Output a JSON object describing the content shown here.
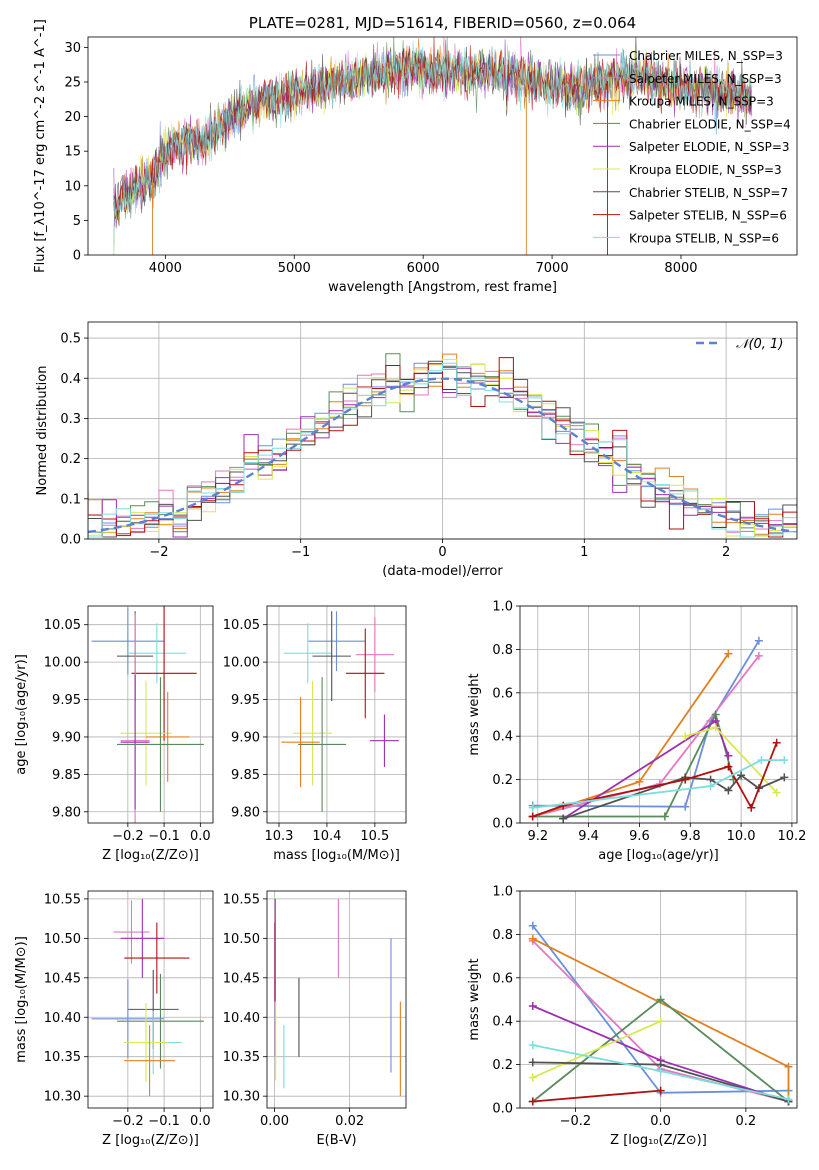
{
  "chart_data": [
    {
      "id": "spectrum",
      "type": "line",
      "title": "PLATE=0281, MJD=51614, FIBERID=0560, z=0.064",
      "xlabel": "wavelength [Angstrom, rest frame]",
      "ylabel": "Flux [f_λ10^-17 erg cm^-2 s^-1 A^-1]",
      "xlim": [
        3400,
        8900
      ],
      "ylim": [
        0,
        31.5
      ],
      "xticks": [
        "4000",
        "5000",
        "6000",
        "7000",
        "8000"
      ],
      "yticks": [
        "0",
        "5",
        "10",
        "15",
        "20",
        "25",
        "30"
      ],
      "grid": false,
      "legend_position": "top-right",
      "continuum": {
        "x": [
          3600,
          3700,
          3800,
          3900,
          4000,
          4100,
          4200,
          4300,
          4500,
          4700,
          4900,
          5100,
          5300,
          5500,
          5700,
          5900,
          6100,
          6300,
          6500,
          6700,
          6900,
          7100,
          7300,
          7500,
          7700,
          7900,
          8100,
          8300,
          8500
        ],
        "y": [
          6,
          9,
          10,
          11,
          15,
          16,
          17,
          16,
          20,
          22,
          23,
          24,
          25,
          25.5,
          26.5,
          27,
          26.5,
          26.5,
          26.5,
          26,
          25,
          24,
          24.5,
          25.5,
          26,
          24.5,
          24,
          23.5,
          23
        ]
      },
      "series": [
        {
          "name": "Chabrier MILES, N_SSP=3",
          "color": "#6b8fdc"
        },
        {
          "name": "Salpeter MILES, N_SSP=3",
          "color": "#e377c2"
        },
        {
          "name": "Kroupa MILES, N_SSP=3",
          "color": "#e08020"
        },
        {
          "name": "Chabrier ELODIE, N_SSP=4",
          "color": "#5a8a5a"
        },
        {
          "name": "Salpeter ELODIE, N_SSP=3",
          "color": "#9c30b0"
        },
        {
          "name": "Kroupa ELODIE, N_SSP=3",
          "color": "#d8e850"
        },
        {
          "name": "Chabrier STELIB, N_SSP=7",
          "color": "#505050"
        },
        {
          "name": "Salpeter STELIB, N_SSP=6",
          "color": "#b01010"
        },
        {
          "name": "Kroupa STELIB, N_SSP=6",
          "color": "#7fdcdc"
        }
      ]
    },
    {
      "id": "residuals",
      "type": "line",
      "xlabel": "(data-model)/error",
      "ylabel": "Normed distribution",
      "xlim": [
        -2.5,
        2.5
      ],
      "ylim": [
        0,
        0.54
      ],
      "xticks": [
        "−2",
        "−1",
        "0",
        "1",
        "2"
      ],
      "yticks": [
        "0.0",
        "0.1",
        "0.2",
        "0.3",
        "0.4",
        "0.5"
      ],
      "grid": true,
      "legend": "𝒩(0, 1)",
      "legend_position": "top-right",
      "bin_width": 0.1,
      "reference_curve": "N(0,1)"
    },
    {
      "id": "age-vs-Z",
      "type": "scatter",
      "xlabel": "Z [log₁₀(Z/Z⊙)]",
      "ylabel": "age  [log₁₀(age/yr)]",
      "xlim": [
        -0.31,
        0.035
      ],
      "ylim": [
        9.785,
        10.075
      ],
      "xticks": [
        "−0.2",
        "−0.1",
        "0.0"
      ],
      "yticks": [
        "9.80",
        "9.85",
        "9.90",
        "9.95",
        "10.00",
        "10.05"
      ],
      "grid": true,
      "points": [
        {
          "x": -0.2,
          "y": 10.028,
          "xerr": 0.1,
          "yerr": 0.045,
          "color": "#6b8fdc"
        },
        {
          "x": -0.12,
          "y": 10.012,
          "xerr": 0.08,
          "yerr": 0.04,
          "color": "#7fdcdc"
        },
        {
          "x": -0.18,
          "y": 10.008,
          "xerr": 0.05,
          "yerr": 0.06,
          "color": "#505050"
        },
        {
          "x": -0.1,
          "y": 9.985,
          "xerr": 0.09,
          "yerr": 0.09,
          "color": "#b01010"
        },
        {
          "x": -0.15,
          "y": 9.905,
          "xerr": 0.07,
          "yerr": 0.07,
          "color": "#d8e850"
        },
        {
          "x": -0.09,
          "y": 9.9,
          "xerr": 0.06,
          "yerr": 0.06,
          "color": "#e08020"
        },
        {
          "x": -0.18,
          "y": 9.895,
          "xerr": 0.04,
          "yerr": 0.17,
          "color": "#e377c2"
        },
        {
          "x": -0.18,
          "y": 9.893,
          "xerr": 0.04,
          "yerr": 0.09,
          "color": "#9c30b0"
        },
        {
          "x": -0.11,
          "y": 9.89,
          "xerr": 0.12,
          "yerr": 0.09,
          "color": "#5a8a5a"
        }
      ]
    },
    {
      "id": "age-vs-mass",
      "type": "scatter",
      "xlabel": "mass [log₁₀(M/M⊙)]",
      "ylabel": "",
      "xlim": [
        10.275,
        10.565
      ],
      "ylim": [
        9.785,
        10.075
      ],
      "xticks": [
        "10.3",
        "10.4",
        "10.5"
      ],
      "yticks": [
        "9.80",
        "9.85",
        "9.90",
        "9.95",
        "10.00",
        "10.05"
      ],
      "grid": true,
      "points": [
        {
          "x": 10.42,
          "y": 10.028,
          "xerr": 0.06,
          "yerr": 0.04,
          "color": "#6b8fdc"
        },
        {
          "x": 10.36,
          "y": 10.012,
          "xerr": 0.05,
          "yerr": 0.04,
          "color": "#7fdcdc"
        },
        {
          "x": 10.41,
          "y": 10.008,
          "xerr": 0.04,
          "yerr": 0.06,
          "color": "#505050"
        },
        {
          "x": 10.5,
          "y": 10.01,
          "xerr": 0.04,
          "yerr": 0.05,
          "color": "#e377c2"
        },
        {
          "x": 10.48,
          "y": 9.985,
          "xerr": 0.04,
          "yerr": 0.06,
          "color": "#b01010"
        },
        {
          "x": 10.37,
          "y": 9.905,
          "xerr": 0.04,
          "yerr": 0.07,
          "color": "#d8e850"
        },
        {
          "x": 10.345,
          "y": 9.893,
          "xerr": 0.04,
          "yerr": 0.06,
          "color": "#e08020"
        },
        {
          "x": 10.39,
          "y": 9.89,
          "xerr": 0.05,
          "yerr": 0.09,
          "color": "#5a8a5a"
        },
        {
          "x": 10.52,
          "y": 9.895,
          "xerr": 0.03,
          "yerr": 0.035,
          "color": "#9c30b0"
        }
      ]
    },
    {
      "id": "weight-vs-age",
      "type": "line",
      "xlabel": "age  [log₁₀(age/yr)]",
      "ylabel": "mass weight",
      "xlim": [
        9.13,
        10.22
      ],
      "ylim": [
        0,
        1.0
      ],
      "xticks": [
        "9.2",
        "9.4",
        "9.6",
        "9.8",
        "10.0",
        "10.2"
      ],
      "yticks": [
        "0.0",
        "0.2",
        "0.4",
        "0.6",
        "0.8",
        "1.0"
      ],
      "grid": true,
      "series": [
        {
          "color": "#6b8fdc",
          "x": [
            9.18,
            9.78,
            9.88,
            10.07
          ],
          "y": [
            0.08,
            0.075,
            0.47,
            0.84
          ]
        },
        {
          "color": "#e377c2",
          "x": [
            9.18,
            9.68,
            10.07
          ],
          "y": [
            0.03,
            0.18,
            0.77
          ]
        },
        {
          "color": "#e08020",
          "x": [
            9.18,
            9.6,
            9.95
          ],
          "y": [
            0.03,
            0.19,
            0.78
          ]
        },
        {
          "color": "#5a8a5a",
          "x": [
            9.18,
            9.7,
            9.9,
            9.97
          ],
          "y": [
            0.03,
            0.03,
            0.5,
            0.2
          ]
        },
        {
          "color": "#9c30b0",
          "x": [
            9.3,
            9.9,
            9.95
          ],
          "y": [
            0.02,
            0.47,
            0.31
          ]
        },
        {
          "color": "#d8e850",
          "x": [
            9.78,
            9.9,
            10.14
          ],
          "y": [
            0.4,
            0.44,
            0.14
          ]
        },
        {
          "color": "#505050",
          "x": [
            9.3,
            9.78,
            9.88,
            9.95,
            10.0,
            10.07,
            10.17
          ],
          "y": [
            0.02,
            0.21,
            0.2,
            0.15,
            0.22,
            0.16,
            0.21
          ]
        },
        {
          "color": "#b01010",
          "x": [
            9.18,
            9.3,
            9.78,
            9.95,
            10.04,
            10.14
          ],
          "y": [
            0.03,
            0.08,
            0.2,
            0.26,
            0.07,
            0.37
          ]
        },
        {
          "color": "#7fdcdc",
          "x": [
            9.18,
            9.88,
            10.08,
            10.17
          ],
          "y": [
            0.07,
            0.17,
            0.29,
            0.29
          ]
        }
      ]
    },
    {
      "id": "mass-vs-Z",
      "type": "scatter",
      "xlabel": "Z [log₁₀(Z/Z⊙)]",
      "ylabel": "mass [log₁₀(M/M⊙)]",
      "xlim": [
        -0.31,
        0.035
      ],
      "ylim": [
        10.285,
        10.56
      ],
      "xticks": [
        "−0.2",
        "−0.1",
        "0.0"
      ],
      "yticks": [
        "10.30",
        "10.35",
        "10.40",
        "10.45",
        "10.50",
        "10.55"
      ],
      "grid": true,
      "points": [
        {
          "x": -0.19,
          "y": 10.508,
          "xerr": 0.05,
          "yerr": 0.04,
          "color": "#e377c2"
        },
        {
          "x": -0.16,
          "y": 10.5,
          "xerr": 0.06,
          "yerr": 0.05,
          "color": "#9c30b0"
        },
        {
          "x": -0.12,
          "y": 10.475,
          "xerr": 0.09,
          "yerr": 0.045,
          "color": "#b01010"
        },
        {
          "x": -0.13,
          "y": 10.41,
          "xerr": 0.07,
          "yerr": 0.05,
          "color": "#505050"
        },
        {
          "x": -0.11,
          "y": 10.395,
          "xerr": 0.12,
          "yerr": 0.06,
          "color": "#5a8a5a"
        },
        {
          "x": -0.2,
          "y": 10.398,
          "xerr": 0.1,
          "yerr": 0.05,
          "color": "#6b8fdc"
        },
        {
          "x": -0.13,
          "y": 10.368,
          "xerr": 0.08,
          "yerr": 0.04,
          "color": "#7fdcdc"
        },
        {
          "x": -0.15,
          "y": 10.368,
          "xerr": 0.06,
          "yerr": 0.05,
          "color": "#d8e850"
        },
        {
          "x": -0.14,
          "y": 10.345,
          "xerr": 0.07,
          "yerr": 0.045,
          "color": "#e08020"
        }
      ]
    },
    {
      "id": "mass-vs-EBV",
      "type": "scatter",
      "xlabel": "E(B-V)",
      "ylabel": "",
      "xlim": [
        -0.002,
        0.035
      ],
      "ylim": [
        10.285,
        10.56
      ],
      "xticks": [
        "0.00",
        "0.02"
      ],
      "yticks": [
        "10.30",
        "10.35",
        "10.40",
        "10.45",
        "10.50",
        "10.55"
      ],
      "grid": true,
      "points": [
        {
          "x": 0.0001,
          "y": 10.47,
          "xerr": 0,
          "yerr": 0.05,
          "color": "#b01010"
        },
        {
          "x": 0.0002,
          "y": 10.45,
          "xerr": 0,
          "yerr": 0.1,
          "color": "#9c30b0"
        },
        {
          "x": 0.0003,
          "y": 10.37,
          "xerr": 0,
          "yerr": 0.05,
          "color": "#d8e850"
        },
        {
          "x": 0.0025,
          "y": 10.35,
          "xerr": 0,
          "yerr": 0.04,
          "color": "#7fdcdc"
        },
        {
          "x": 0.0065,
          "y": 10.4,
          "xerr": 0,
          "yerr": 0.05,
          "color": "#505050"
        },
        {
          "x": 0.017,
          "y": 10.5,
          "xerr": 0,
          "yerr": 0.05,
          "color": "#e377c2"
        },
        {
          "x": 0.031,
          "y": 10.415,
          "xerr": 0,
          "yerr": 0.085,
          "color": "#6b8fdc"
        },
        {
          "x": 0.0335,
          "y": 10.36,
          "xerr": 0,
          "yerr": 0.06,
          "color": "#e08020"
        }
      ]
    },
    {
      "id": "weight-vs-Z",
      "type": "line",
      "xlabel": "Z [log₁₀(Z/Z⊙)]",
      "ylabel": "mass weight",
      "xlim": [
        -0.33,
        0.32
      ],
      "ylim": [
        0,
        1.0
      ],
      "xticks": [
        "−0.2",
        "0.0",
        "0.2"
      ],
      "yticks": [
        "0.0",
        "0.2",
        "0.4",
        "0.6",
        "0.8",
        "1.0"
      ],
      "grid": true,
      "series": [
        {
          "color": "#6b8fdc",
          "x": [
            -0.3,
            0.0,
            0.3
          ],
          "y": [
            0.84,
            0.07,
            0.08
          ]
        },
        {
          "color": "#e377c2",
          "x": [
            -0.3,
            0.0,
            0.3
          ],
          "y": [
            0.77,
            0.18,
            0.03
          ]
        },
        {
          "color": "#e08020",
          "x": [
            -0.3,
            0.3,
            0.3
          ],
          "y": [
            0.78,
            0.19,
            0.03
          ]
        },
        {
          "color": "#5a8a5a",
          "x": [
            -0.3,
            0.0,
            0.3
          ],
          "y": [
            0.03,
            0.5,
            0.03
          ]
        },
        {
          "color": "#9c30b0",
          "x": [
            -0.3,
            0.0,
            0.3
          ],
          "y": [
            0.47,
            0.22,
            0.03
          ]
        },
        {
          "color": "#d8e850",
          "x": [
            -0.3,
            0.0
          ],
          "y": [
            0.14,
            0.4
          ]
        },
        {
          "color": "#505050",
          "x": [
            -0.3,
            0.0,
            0.3
          ],
          "y": [
            0.21,
            0.2,
            0.03
          ]
        },
        {
          "color": "#b01010",
          "x": [
            -0.3,
            0.0
          ],
          "y": [
            0.03,
            0.08
          ]
        },
        {
          "color": "#7fdcdc",
          "x": [
            -0.3,
            0.0,
            0.3
          ],
          "y": [
            0.29,
            0.17,
            0.04
          ]
        }
      ]
    }
  ]
}
